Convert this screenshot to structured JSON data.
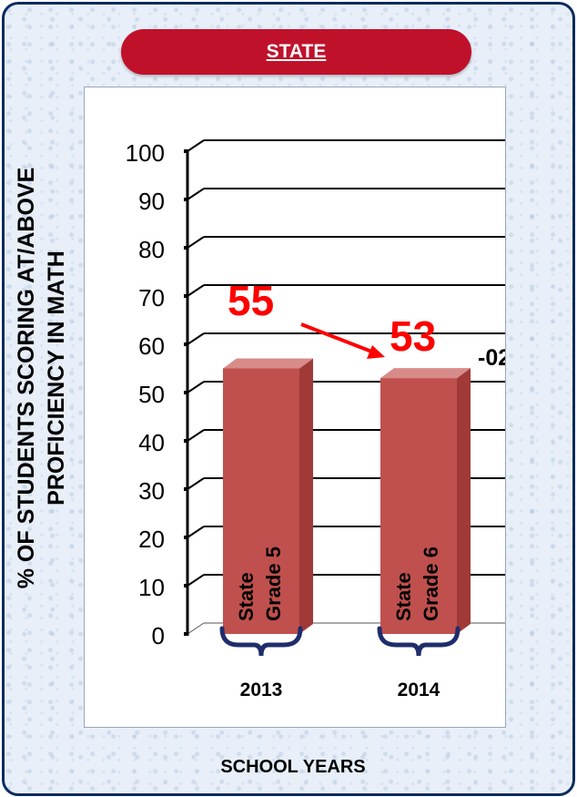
{
  "chart_data": {
    "type": "bar",
    "title": "STATE",
    "ylabel_lines": [
      "% OF STUDENTS SCORING AT/ABOVE",
      "PROFICIENCY IN MATH"
    ],
    "xlabel": "SCHOOL YEARS",
    "ylim": [
      0,
      100
    ],
    "yticks": [
      0,
      10,
      20,
      30,
      40,
      50,
      60,
      70,
      80,
      90,
      100
    ],
    "grid": true,
    "categories": [
      "2013",
      "2014"
    ],
    "series": [
      {
        "values": [
          55,
          53
        ]
      }
    ],
    "bar_labels": [
      [
        "State",
        "Grade 5"
      ],
      [
        "State",
        "Grade 6"
      ]
    ],
    "data_labels": [
      "55",
      "53"
    ],
    "change_label": "-02",
    "colors": {
      "bar": "#c0504d",
      "value_label": "#ff0000",
      "banner": "#c0112b",
      "brace": "#1f2d6b"
    }
  }
}
